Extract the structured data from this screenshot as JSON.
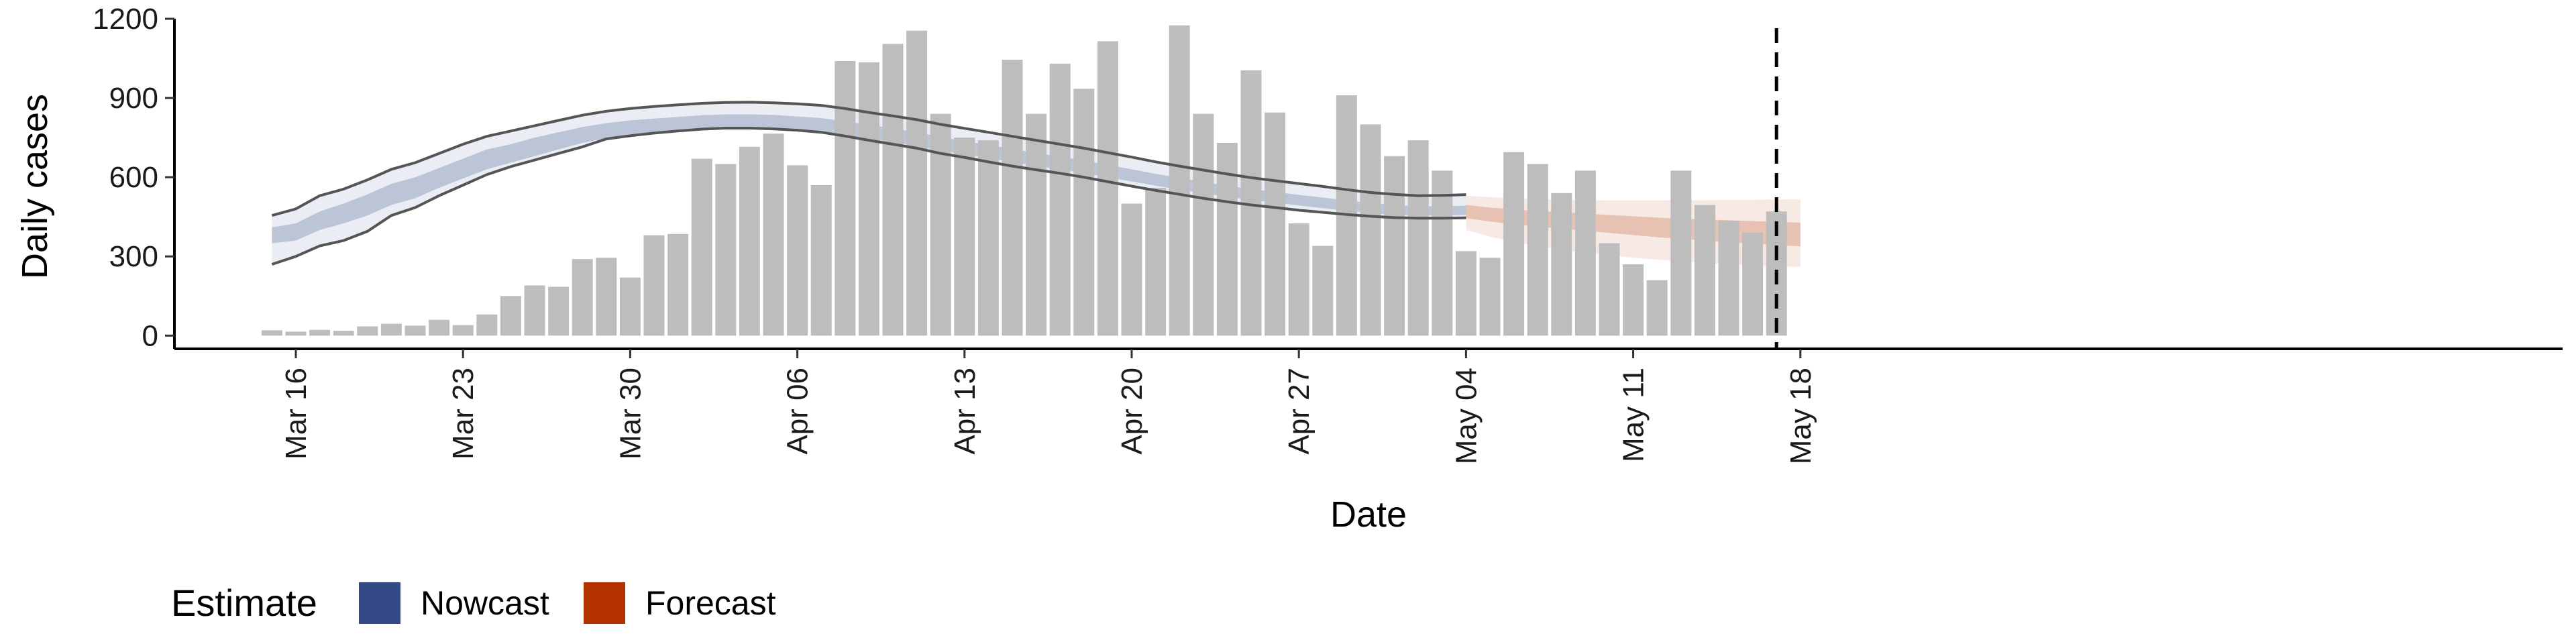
{
  "chart_data": {
    "type": "bar",
    "xlabel": "Date",
    "ylabel": "Daily cases",
    "ylim": [
      -50,
      1200
    ],
    "y_ticks": [
      0,
      300,
      600,
      900,
      1200
    ],
    "x_tick_labels": [
      "Mar 16",
      "Mar 23",
      "Mar 30",
      "Apr 06",
      "Apr 13",
      "Apr 20",
      "Apr 27",
      "May 04",
      "May 11",
      "May 18"
    ],
    "start_date": "2020-03-15",
    "grid": false,
    "legend_position": "bottom-left",
    "legend": {
      "title": "Estimate",
      "entries": [
        {
          "label": "Nowcast",
          "color": "#344A86"
        },
        {
          "label": "Forecast",
          "color": "#B33200"
        }
      ]
    },
    "colors": {
      "bars": "#BDBDBD",
      "nowcast": "#344A86",
      "forecast": "#B33200",
      "line": "#555555"
    },
    "cutoff_date": "2020-05-17",
    "bars": [
      20,
      15,
      22,
      18,
      35,
      45,
      38,
      60,
      40,
      80,
      150,
      190,
      185,
      290,
      295,
      220,
      380,
      385,
      670,
      650,
      715,
      765,
      645,
      570,
      1040,
      1035,
      1105,
      1155,
      840,
      750,
      740,
      1045,
      840,
      1030,
      935,
      1115,
      500,
      560,
      1175,
      840,
      730,
      1005,
      845,
      425,
      340,
      910,
      800,
      680,
      740,
      625,
      320,
      295,
      695,
      650,
      540,
      625,
      350,
      270,
      210,
      625,
      495,
      435,
      390,
      470
    ],
    "nowcast": {
      "upper_outer": [
        455,
        480,
        530,
        555,
        590,
        630,
        655,
        690,
        725,
        755,
        775,
        795,
        815,
        835,
        850,
        860,
        868,
        874,
        880,
        883,
        884,
        882,
        878,
        872,
        860,
        845,
        832,
        818,
        800,
        785,
        770,
        755,
        740,
        725,
        710,
        693,
        676,
        658,
        642,
        627,
        612,
        598,
        587,
        576,
        565,
        553,
        542,
        535,
        530,
        531,
        534
      ],
      "upper_inner": [
        410,
        425,
        470,
        500,
        535,
        575,
        600,
        635,
        670,
        705,
        725,
        750,
        770,
        790,
        805,
        815,
        822,
        828,
        835,
        838,
        838,
        836,
        830,
        824,
        812,
        798,
        785,
        770,
        752,
        737,
        722,
        707,
        692,
        678,
        663,
        647,
        630,
        613,
        597,
        582,
        568,
        555,
        544,
        533,
        523,
        512,
        502,
        495,
        490,
        490,
        492
      ],
      "lower_inner": [
        350,
        360,
        400,
        425,
        455,
        495,
        520,
        560,
        595,
        630,
        655,
        680,
        705,
        730,
        748,
        760,
        770,
        778,
        785,
        788,
        788,
        786,
        780,
        772,
        760,
        745,
        732,
        718,
        700,
        686,
        672,
        657,
        643,
        630,
        616,
        600,
        584,
        568,
        553,
        539,
        526,
        514,
        503,
        493,
        483,
        473,
        464,
        458,
        455,
        455,
        457
      ],
      "lower_outer": [
        270,
        300,
        340,
        360,
        395,
        455,
        485,
        530,
        570,
        610,
        640,
        665,
        690,
        715,
        745,
        757,
        767,
        775,
        782,
        786,
        786,
        783,
        778,
        770,
        756,
        740,
        725,
        710,
        690,
        675,
        658,
        642,
        628,
        615,
        600,
        583,
        566,
        550,
        535,
        520,
        507,
        495,
        485,
        475,
        467,
        459,
        452,
        447,
        445,
        445,
        446
      ]
    },
    "forecast": {
      "upper_outer": [
        530,
        525,
        520,
        517,
        515,
        513,
        512,
        512,
        512,
        513,
        513,
        514,
        515,
        516,
        517
      ],
      "upper_inner": [
        495,
        485,
        478,
        472,
        467,
        462,
        457,
        452,
        447,
        443,
        440,
        437,
        434,
        431,
        428
      ],
      "lower_inner": [
        445,
        432,
        422,
        413,
        405,
        397,
        389,
        381,
        373,
        366,
        360,
        354,
        348,
        343,
        338
      ],
      "lower_outer": [
        400,
        375,
        355,
        340,
        325,
        315,
        305,
        295,
        288,
        280,
        275,
        270,
        265,
        262,
        260
      ]
    }
  }
}
